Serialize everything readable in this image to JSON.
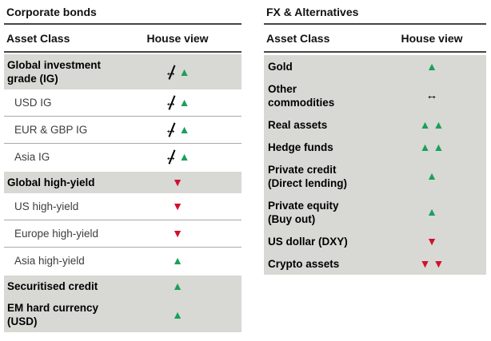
{
  "colors": {
    "up_green": "#1aa05a",
    "down_red": "#d0112b",
    "row_gray": "#d8d8d4"
  },
  "icon_legend": {
    "up": "green up-triangle (positive view)",
    "down": "red down-triangle (negative view)",
    "neutral": "black left-right arrow (neutral view)",
    "neutral-crossed": "black left-right arrow with strike-through (view changed from neutral)"
  },
  "tables": [
    {
      "id": "corporate",
      "title": "Corporate bonds",
      "columns": {
        "asset": "Asset Class",
        "view": "House view"
      },
      "rows": [
        {
          "style": "section",
          "lines": [
            "Global investment",
            "grade (IG)"
          ],
          "view": [
            "neutral-crossed",
            "up"
          ]
        },
        {
          "style": "sub",
          "lines": [
            "USD IG"
          ],
          "view": [
            "neutral-crossed",
            "up"
          ]
        },
        {
          "style": "sub",
          "lines": [
            "EUR & GBP IG"
          ],
          "view": [
            "neutral-crossed",
            "up"
          ]
        },
        {
          "style": "sub",
          "lines": [
            "Asia IG"
          ],
          "view": [
            "neutral-crossed",
            "up"
          ]
        },
        {
          "style": "section",
          "lines": [
            "Global high-yield"
          ],
          "view": [
            "down"
          ]
        },
        {
          "style": "sub",
          "lines": [
            "US high-yield"
          ],
          "view": [
            "down"
          ]
        },
        {
          "style": "sub",
          "lines": [
            "Europe high-yield"
          ],
          "view": [
            "down"
          ]
        },
        {
          "style": "sub",
          "lines": [
            "Asia high-yield"
          ],
          "view": [
            "up"
          ]
        },
        {
          "style": "section",
          "lines": [
            "Securitised credit"
          ],
          "view": [
            "up"
          ]
        },
        {
          "style": "section",
          "lines": [
            "EM hard currency",
            "(USD)"
          ],
          "view": [
            "up"
          ]
        }
      ]
    },
    {
      "id": "fx",
      "title": "FX & Alternatives",
      "columns": {
        "asset": "Asset Class",
        "view": "House view"
      },
      "rows": [
        {
          "style": "section",
          "lines": [
            "Gold"
          ],
          "view": [
            "up"
          ]
        },
        {
          "style": "section",
          "lines": [
            "Other",
            "commodities"
          ],
          "view": [
            "neutral"
          ]
        },
        {
          "style": "section",
          "lines": [
            "Real assets"
          ],
          "view": [
            "up",
            "up"
          ]
        },
        {
          "style": "section",
          "lines": [
            "Hedge funds"
          ],
          "view": [
            "up",
            "up"
          ]
        },
        {
          "style": "section",
          "lines": [
            "Private credit",
            "(Direct lending)"
          ],
          "view": [
            "up"
          ]
        },
        {
          "style": "section",
          "lines": [
            "Private equity",
            "(Buy out)"
          ],
          "view": [
            "up"
          ]
        },
        {
          "style": "section",
          "lines": [
            "US dollar (DXY)"
          ],
          "view": [
            "down"
          ]
        },
        {
          "style": "section",
          "lines": [
            "Crypto assets"
          ],
          "view": [
            "down",
            "down"
          ]
        }
      ]
    }
  ]
}
